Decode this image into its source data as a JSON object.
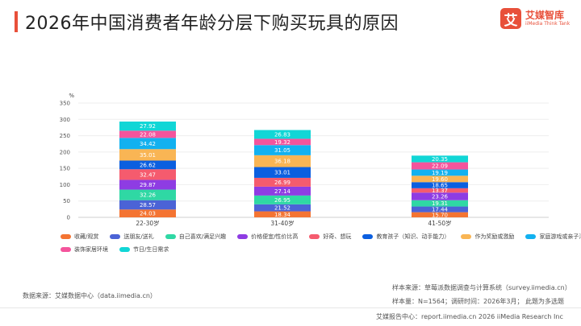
{
  "title": "2026年中国消费者年龄分层下购买玩具的原因",
  "logo": {
    "mark": "艾",
    "name": "艾媒智库",
    "en": "iiMedia Think Tank"
  },
  "source": "数据来源：艾媒数据中心（data.iimedia.cn）",
  "sample": {
    "source": "样本来源：草莓派数据调查与计算系统（survey.iimedia.cn）",
    "size": "样本量：N=1564；调研时间：2026年3月；  此题为多选题"
  },
  "footer": "艾媒报告中心：report.iimedia.cn   2026 iiMedia Research Inc",
  "chart_data": {
    "type": "bar",
    "stacked": true,
    "y_unit": "%",
    "ylim": [
      0,
      350
    ],
    "yticks": [
      0,
      50,
      100,
      150,
      200,
      250,
      300,
      350
    ],
    "categories": [
      "22-30岁",
      "31-40岁",
      "41-50岁"
    ],
    "series": [
      {
        "name": "收藏/观赏",
        "color": "#f47432",
        "values": [
          24.03,
          18.34,
          15.7
        ]
      },
      {
        "name": "送朋友/送礼",
        "color": "#4b63d6",
        "values": [
          28.57,
          21.52,
          17.44
        ]
      },
      {
        "name": "自己喜欢/满足兴趣",
        "color": "#2fd8a4",
        "values": [
          32.26,
          26.95,
          19.31
        ]
      },
      {
        "name": "价格便宜/性价比高",
        "color": "#8e3ce3",
        "values": [
          29.87,
          27.14,
          23.26
        ]
      },
      {
        "name": "好奇、想玩",
        "color": "#f55b6e",
        "values": [
          32.47,
          26.99,
          13.37
        ]
      },
      {
        "name": "教育孩子（知识、动手能力）",
        "color": "#0b5fe0",
        "values": [
          26.62,
          33.01,
          18.65
        ]
      },
      {
        "name": "作为奖励或激励",
        "color": "#f9b554",
        "values": [
          35.01,
          36.18,
          19.6
        ]
      },
      {
        "name": "家庭游戏或亲子活动",
        "color": "#12b1f0",
        "values": [
          34.42,
          31.05,
          19.19
        ]
      },
      {
        "name": "装饰家居环境",
        "color": "#f4549c",
        "values": [
          22.08,
          19.32,
          22.09
        ]
      },
      {
        "name": "节日/生日需求",
        "color": "#11d6d6",
        "values": [
          27.92,
          26.83,
          20.35
        ]
      }
    ]
  }
}
